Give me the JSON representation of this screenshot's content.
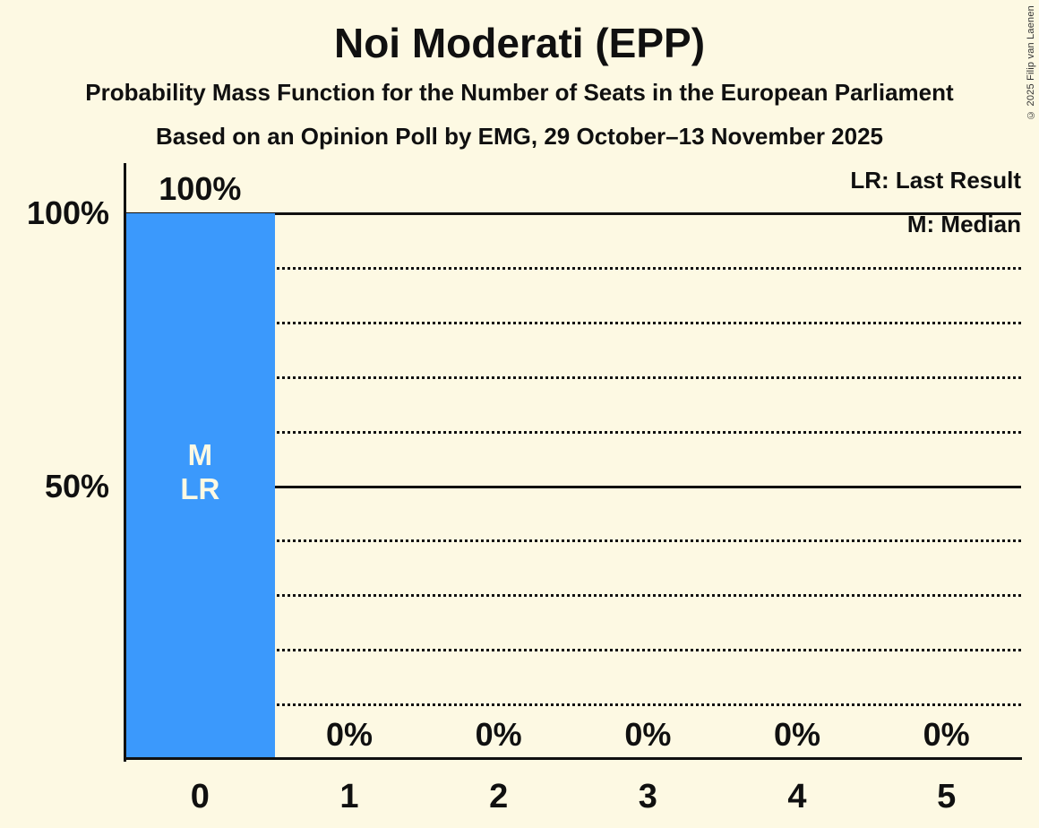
{
  "page": {
    "background_color": "#FDF9E3",
    "text_color": "#101010",
    "copyright": "© 2025 Filip van Laenen"
  },
  "header": {
    "title": "Noi Moderati (EPP)",
    "subtitle_line1": "Probability Mass Function for the Number of Seats in the European Parliament",
    "subtitle_line2": "Based on an Opinion Poll by EMG, 29 October–13 November 2025"
  },
  "legend": {
    "last_result_label": "LR: Last Result",
    "median_label": "M: Median"
  },
  "chart_data": {
    "type": "bar",
    "title": "Noi Moderati (EPP)",
    "categories": [
      "0",
      "1",
      "2",
      "3",
      "4",
      "5"
    ],
    "values": [
      100,
      0,
      0,
      0,
      0,
      0
    ],
    "bar_labels": [
      "100%",
      "0%",
      "0%",
      "0%",
      "0%",
      "0%"
    ],
    "bar_color": "#3B99FC",
    "bar_annotation_text_color": "#FDF9E3",
    "annotation": {
      "category": "0",
      "lines": [
        "M",
        "LR"
      ]
    },
    "median_seats": 0,
    "last_result_seats": 0,
    "ylim": [
      0,
      100
    ],
    "yticks": [
      {
        "value": 100,
        "label": "100%"
      },
      {
        "value": 50,
        "label": "50%"
      }
    ],
    "gridlines": {
      "solid": [
        100,
        50
      ],
      "dotted": [
        90,
        80,
        70,
        60,
        40,
        30,
        20,
        10
      ]
    },
    "grid": "horizontal-only",
    "legend_position": "top-right",
    "xlabel": "",
    "ylabel": ""
  }
}
